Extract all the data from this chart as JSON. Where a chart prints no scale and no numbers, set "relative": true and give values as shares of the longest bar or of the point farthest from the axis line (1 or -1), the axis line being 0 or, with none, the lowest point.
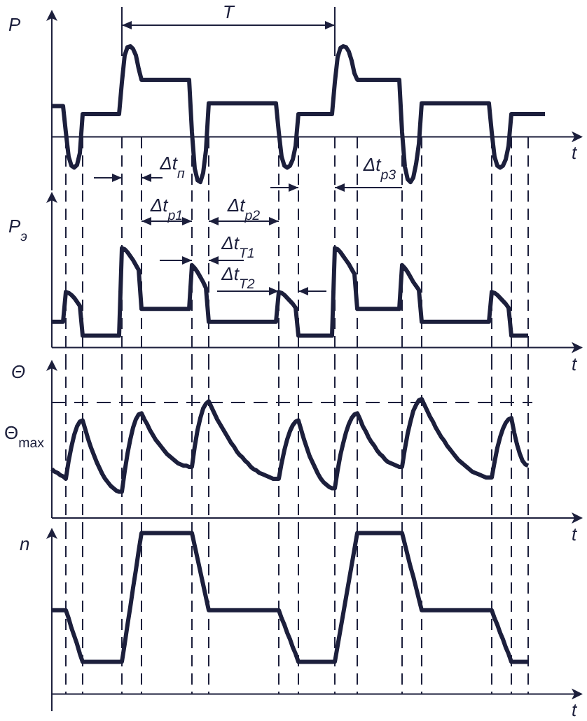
{
  "chart_data": [
    {
      "type": "line",
      "ylabel": "P",
      "xlabel": "t",
      "relative": true,
      "color": "#1c1f3c",
      "categories": [
        null,
        null,
        null,
        null,
        null,
        null,
        null,
        null,
        null,
        null,
        null,
        null,
        null,
        null,
        null,
        null,
        null,
        null,
        null,
        null,
        null,
        null,
        null,
        null,
        null,
        null,
        null,
        null,
        null,
        null,
        null,
        null,
        null,
        null,
        null,
        null,
        null,
        null,
        null,
        null,
        null,
        null,
        null,
        null,
        null,
        null,
        null,
        null,
        null,
        null,
        null,
        null,
        null,
        null,
        null,
        null,
        null,
        null,
        null,
        null,
        null,
        null,
        null,
        null,
        null,
        null,
        null,
        null,
        null,
        null,
        null,
        null,
        null,
        null,
        null,
        null,
        null,
        null,
        null,
        null,
        null,
        null,
        null,
        null,
        null,
        null,
        null,
        null,
        null,
        null,
        null,
        null,
        null,
        null,
        null,
        null,
        null,
        null,
        null,
        null,
        null,
        null,
        null,
        null,
        null,
        null,
        null,
        null,
        null,
        null,
        null,
        null,
        null,
        null,
        null,
        null,
        null,
        null,
        null,
        null,
        null,
        null,
        null,
        null,
        null,
        null,
        null,
        null,
        null,
        null,
        null,
        null,
        null,
        null,
        null,
        null,
        null,
        null,
        null,
        null,
        null,
        null,
        null,
        null,
        null,
        null,
        null,
        null,
        null,
        null,
        null,
        null,
        null,
        null,
        null,
        null,
        null,
        null,
        null,
        null,
        null,
        null,
        null,
        null,
        null,
        null,
        null,
        null,
        null,
        null,
        null,
        null,
        null,
        null,
        null,
        null,
        null
      ],
      "values": [
        0.34,
        0.34,
        0.34,
        0.34,
        0.34,
        0.05,
        -0.22,
        -0.32,
        -0.34,
        -0.31,
        -0.18,
        0.25,
        0.25,
        0.25,
        0.25,
        0.25,
        0.25,
        0.25,
        0.25,
        0.25,
        0.25,
        0.25,
        0.25,
        0.25,
        0.25,
        0.6,
        0.9,
        0.99,
        1,
        0.97,
        0.9,
        0.75,
        0.63,
        0.63,
        0.63,
        0.63,
        0.63,
        0.63,
        0.63,
        0.63,
        0.63,
        0.63,
        0.63,
        0.63,
        0.63,
        0.63,
        0.63,
        0.63,
        0.63,
        0.63,
        0.05,
        -0.35,
        -0.48,
        -0.5,
        -0.4,
        -0.15,
        0.37,
        0.37,
        0.37,
        0.37,
        0.37,
        0.37,
        0.37,
        0.37,
        0.37,
        0.37,
        0.37,
        0.37,
        0.37,
        0.37,
        0.37,
        0.37,
        0.37,
        0.37,
        0.37,
        0.37,
        0.37,
        0.37,
        0.37,
        0.37,
        0.37,
        0.05,
        -0.22,
        -0.32,
        -0.34,
        -0.32,
        -0.25,
        -0.1,
        0.25,
        0.25,
        0.25,
        0.25,
        0.25,
        0.25,
        0.25,
        0.25,
        0.25,
        0.25,
        0.25,
        0.25,
        0.25,
        0.6,
        0.88,
        0.98,
        1,
        0.99,
        0.94,
        0.84,
        0.7,
        0.63,
        0.63,
        0.63,
        0.63,
        0.63,
        0.63,
        0.63,
        0.63,
        0.63,
        0.63,
        0.63,
        0.63,
        0.63,
        0.63,
        0.63,
        0.63,
        0.05,
        -0.33,
        -0.47,
        -0.5,
        -0.45,
        -0.3,
        -0.08,
        0.37,
        0.37,
        0.37,
        0.37,
        0.37,
        0.37,
        0.37,
        0.37,
        0.37,
        0.37,
        0.37,
        0.37,
        0.37,
        0.37,
        0.37,
        0.37,
        0.37,
        0.37,
        0.37,
        0.37,
        0.37,
        0.37,
        0.37,
        0.37,
        0.37,
        0.05,
        -0.22,
        -0.32,
        -0.34,
        -0.32,
        -0.25,
        -0.1,
        0.25,
        0.25,
        0.25,
        0.25,
        0.25,
        0.25,
        0.25,
        0.25,
        0.25,
        0.25,
        0.25,
        0.25,
        0.25
      ],
      "annotations": [
        "T",
        "Δt$_{п}$",
        "Δt$_{р3}$"
      ]
    },
    {
      "type": "line",
      "ylabel": "P$_{э}$",
      "xlabel": "t",
      "relative": true,
      "color": "#1c1f3c",
      "categories": [
        null,
        null,
        null,
        null,
        null,
        null,
        null,
        null,
        null,
        null,
        null,
        null,
        null,
        null,
        null,
        null,
        null,
        null,
        null,
        null,
        null,
        null,
        null,
        null,
        null,
        null,
        null,
        null,
        null,
        null,
        null,
        null,
        null,
        null,
        null,
        null,
        null,
        null,
        null,
        null,
        null,
        null,
        null,
        null,
        null,
        null,
        null,
        null,
        null,
        null,
        null,
        null,
        null,
        null,
        null,
        null,
        null,
        null,
        null,
        null,
        null,
        null,
        null,
        null,
        null,
        null,
        null,
        null,
        null,
        null,
        null,
        null,
        null,
        null,
        null,
        null,
        null,
        null,
        null,
        null,
        null,
        null,
        null,
        null,
        null,
        null,
        null,
        null,
        null,
        null,
        null,
        null,
        null,
        null,
        null,
        null,
        null,
        null,
        null,
        null,
        null,
        null,
        null,
        null,
        null,
        null,
        null,
        null,
        null,
        null,
        null,
        null,
        null,
        null,
        null,
        null,
        null,
        null,
        null,
        null,
        null,
        null,
        null,
        null,
        null,
        null,
        null,
        null,
        null,
        null,
        null,
        null,
        null,
        null,
        null,
        null,
        null,
        null,
        null,
        null,
        null,
        null,
        null,
        null,
        null,
        null,
        null,
        null,
        null,
        null,
        null,
        null,
        null,
        null,
        null,
        null,
        null,
        null,
        null,
        null,
        null,
        null,
        null,
        null,
        null,
        null,
        null,
        null,
        null,
        null,
        null
      ],
      "values": [
        0.26,
        0.26,
        0.26,
        0.26,
        0.26,
        0.56,
        0.55,
        0.53,
        0.5,
        0.46,
        0.42,
        0.12,
        0.12,
        0.12,
        0.12,
        0.12,
        0.12,
        0.12,
        0.12,
        0.12,
        0.12,
        0.12,
        0.12,
        0.12,
        0.12,
        1,
        0.99,
        0.96,
        0.92,
        0.88,
        0.83,
        0.78,
        0.39,
        0.39,
        0.39,
        0.39,
        0.39,
        0.39,
        0.39,
        0.39,
        0.39,
        0.39,
        0.39,
        0.39,
        0.39,
        0.39,
        0.39,
        0.39,
        0.39,
        0.39,
        0.83,
        0.8,
        0.76,
        0.71,
        0.66,
        0.6,
        0.26,
        0.26,
        0.26,
        0.26,
        0.26,
        0.26,
        0.26,
        0.26,
        0.26,
        0.26,
        0.26,
        0.26,
        0.26,
        0.26,
        0.26,
        0.26,
        0.26,
        0.26,
        0.26,
        0.26,
        0.26,
        0.26,
        0.26,
        0.26,
        0.26,
        0.56,
        0.55,
        0.53,
        0.5,
        0.47,
        0.44,
        0.4,
        0.12,
        0.12,
        0.12,
        0.12,
        0.12,
        0.12,
        0.12,
        0.12,
        0.12,
        0.12,
        0.12,
        0.12,
        0.12,
        1,
        0.99,
        0.96,
        0.92,
        0.88,
        0.84,
        0.79,
        0.74,
        0.39,
        0.39,
        0.39,
        0.39,
        0.39,
        0.39,
        0.39,
        0.39,
        0.39,
        0.39,
        0.39,
        0.39,
        0.39,
        0.39,
        0.39,
        0.39,
        0.83,
        0.8,
        0.76,
        0.71,
        0.66,
        0.62,
        0.58,
        0.26,
        0.26,
        0.26,
        0.26,
        0.26,
        0.26,
        0.26,
        0.26,
        0.26,
        0.26,
        0.26,
        0.26,
        0.26,
        0.26,
        0.26,
        0.26,
        0.26,
        0.26,
        0.26,
        0.26,
        0.26,
        0.26,
        0.26,
        0.26,
        0.26,
        0.56,
        0.55,
        0.53,
        0.5,
        0.47,
        0.44,
        0.4,
        0.12,
        0.12,
        0.12,
        0.12,
        0.12,
        0.12,
        0.12
      ],
      "annotations": [
        "Δt$_{р1}$",
        "Δt$_{р2}$",
        "Δt$_{T1}$",
        "Δt$_{T2}$"
      ]
    },
    {
      "type": "line",
      "ylabel": "Θ",
      "xlabel": "t",
      "relative": true,
      "color": "#1c1f3c",
      "categories": [
        null,
        null,
        null,
        null,
        null,
        null,
        null,
        null,
        null,
        null,
        null,
        null,
        null,
        null,
        null,
        null,
        null,
        null,
        null,
        null,
        null,
        null,
        null,
        null,
        null,
        null,
        null,
        null,
        null,
        null,
        null,
        null,
        null,
        null,
        null,
        null,
        null,
        null,
        null,
        null,
        null,
        null,
        null,
        null,
        null,
        null,
        null,
        null,
        null,
        null,
        null,
        null,
        null,
        null,
        null,
        null,
        null,
        null,
        null,
        null,
        null,
        null,
        null,
        null,
        null,
        null,
        null,
        null,
        null,
        null,
        null,
        null,
        null,
        null,
        null,
        null,
        null,
        null,
        null,
        null,
        null,
        null,
        null,
        null,
        null,
        null,
        null,
        null,
        null,
        null,
        null,
        null,
        null,
        null,
        null,
        null,
        null,
        null,
        null,
        null,
        null,
        null,
        null,
        null,
        null,
        null,
        null,
        null,
        null,
        null,
        null,
        null,
        null,
        null,
        null,
        null,
        null,
        null,
        null,
        null,
        null,
        null,
        null,
        null,
        null,
        null,
        null,
        null,
        null,
        null,
        null,
        null,
        null,
        null,
        null,
        null,
        null,
        null,
        null,
        null,
        null,
        null,
        null,
        null,
        null,
        null,
        null,
        null,
        null,
        null,
        null,
        null,
        null,
        null,
        null,
        null,
        null,
        null,
        null,
        null,
        null,
        null,
        null,
        null,
        null,
        null,
        null,
        null,
        null,
        null,
        null
      ],
      "values": [
        0.41,
        0.39,
        0.38,
        0.36,
        0.35,
        0.33,
        0.48,
        0.6,
        0.7,
        0.77,
        0.81,
        0.82,
        0.74,
        0.66,
        0.59,
        0.53,
        0.47,
        0.42,
        0.37,
        0.33,
        0.3,
        0.27,
        0.25,
        0.23,
        0.22,
        0.22,
        0.39,
        0.54,
        0.66,
        0.76,
        0.83,
        0.87,
        0.88,
        0.83,
        0.79,
        0.74,
        0.7,
        0.66,
        0.63,
        0.6,
        0.57,
        0.54,
        0.52,
        0.5,
        0.48,
        0.46,
        0.45,
        0.44,
        0.44,
        0.43,
        0.43,
        0.6,
        0.74,
        0.84,
        0.92,
        0.96,
        0.98,
        0.93,
        0.88,
        0.83,
        0.79,
        0.75,
        0.71,
        0.67,
        0.63,
        0.6,
        0.56,
        0.53,
        0.51,
        0.48,
        0.46,
        0.43,
        0.41,
        0.4,
        0.38,
        0.37,
        0.36,
        0.35,
        0.34,
        0.33,
        0.33,
        0.33,
        0.46,
        0.57,
        0.66,
        0.73,
        0.78,
        0.81,
        0.82,
        0.74,
        0.66,
        0.59,
        0.52,
        0.47,
        0.42,
        0.37,
        0.33,
        0.3,
        0.28,
        0.26,
        0.25,
        0.25,
        0.4,
        0.53,
        0.63,
        0.72,
        0.79,
        0.84,
        0.87,
        0.88,
        0.83,
        0.77,
        0.73,
        0.68,
        0.64,
        0.61,
        0.57,
        0.54,
        0.52,
        0.49,
        0.47,
        0.46,
        0.45,
        0.44,
        0.43,
        0.43,
        0.58,
        0.71,
        0.81,
        0.9,
        0.95,
        0.99,
        1,
        0.95,
        0.9,
        0.85,
        0.81,
        0.76,
        0.72,
        0.68,
        0.65,
        0.61,
        0.58,
        0.55,
        0.52,
        0.49,
        0.47,
        0.45,
        0.43,
        0.41,
        0.39,
        0.38,
        0.37,
        0.36,
        0.35,
        0.34,
        0.34,
        0.34,
        0.47,
        0.59,
        0.68,
        0.75,
        0.8,
        0.83,
        0.84,
        0.72,
        0.62,
        0.54,
        0.48,
        0.45,
        0.44
      ],
      "ref_lines": [
        {
          "axis": "y",
          "value": 0.97,
          "label": "Θ$_{max}$"
        }
      ]
    },
    {
      "type": "line",
      "ylabel": "n",
      "xlabel": "t",
      "relative": true,
      "color": "#1c1f3c",
      "categories": [
        null,
        null,
        null,
        null,
        null,
        null,
        null,
        null,
        null,
        null,
        null,
        null,
        null,
        null,
        null,
        null,
        null,
        null,
        null,
        null,
        null,
        null,
        null,
        null,
        null,
        null,
        null,
        null,
        null,
        null,
        null,
        null,
        null,
        null,
        null,
        null,
        null,
        null,
        null,
        null,
        null,
        null,
        null,
        null,
        null,
        null,
        null,
        null,
        null,
        null,
        null,
        null,
        null,
        null,
        null,
        null,
        null,
        null,
        null,
        null,
        null,
        null,
        null,
        null,
        null,
        null,
        null,
        null,
        null,
        null,
        null,
        null,
        null,
        null,
        null,
        null,
        null,
        null,
        null,
        null,
        null,
        null,
        null,
        null,
        null,
        null,
        null,
        null,
        null,
        null,
        null,
        null,
        null,
        null,
        null,
        null,
        null,
        null,
        null,
        null,
        null,
        null,
        null,
        null,
        null,
        null,
        null,
        null,
        null,
        null,
        null,
        null,
        null,
        null,
        null,
        null,
        null,
        null,
        null,
        null,
        null,
        null,
        null,
        null,
        null,
        null,
        null,
        null,
        null,
        null,
        null,
        null,
        null,
        null,
        null,
        null,
        null,
        null,
        null,
        null,
        null,
        null,
        null,
        null,
        null,
        null,
        null,
        null,
        null,
        null,
        null,
        null,
        null,
        null,
        null,
        null,
        null,
        null,
        null,
        null,
        null,
        null,
        null,
        null,
        null,
        null,
        null,
        null,
        null,
        null,
        null
      ],
      "values": [
        0.52,
        0.52,
        0.52,
        0.52,
        0.52,
        0.52,
        0.47,
        0.41,
        0.36,
        0.31,
        0.25,
        0.2,
        0.2,
        0.2,
        0.2,
        0.2,
        0.2,
        0.2,
        0.2,
        0.2,
        0.2,
        0.2,
        0.2,
        0.2,
        0.2,
        0.2,
        0.31,
        0.43,
        0.54,
        0.66,
        0.77,
        0.89,
        1,
        1,
        1,
        1,
        1,
        1,
        1,
        1,
        1,
        1,
        1,
        1,
        1,
        1,
        1,
        1,
        1,
        1,
        1,
        0.92,
        0.84,
        0.76,
        0.68,
        0.6,
        0.52,
        0.52,
        0.52,
        0.52,
        0.52,
        0.52,
        0.52,
        0.52,
        0.52,
        0.52,
        0.52,
        0.52,
        0.52,
        0.52,
        0.52,
        0.52,
        0.52,
        0.52,
        0.52,
        0.52,
        0.52,
        0.52,
        0.52,
        0.52,
        0.52,
        0.52,
        0.47,
        0.43,
        0.38,
        0.34,
        0.29,
        0.25,
        0.2,
        0.2,
        0.2,
        0.2,
        0.2,
        0.2,
        0.2,
        0.2,
        0.2,
        0.2,
        0.2,
        0.2,
        0.2,
        0.2,
        0.3,
        0.4,
        0.5,
        0.6,
        0.7,
        0.8,
        0.9,
        1,
        1,
        1,
        1,
        1,
        1,
        1,
        1,
        1,
        1,
        1,
        1,
        1,
        1,
        1,
        1,
        1,
        0.93,
        0.86,
        0.79,
        0.73,
        0.66,
        0.59,
        0.52,
        0.52,
        0.52,
        0.52,
        0.52,
        0.52,
        0.52,
        0.52,
        0.52,
        0.52,
        0.52,
        0.52,
        0.52,
        0.52,
        0.52,
        0.52,
        0.52,
        0.52,
        0.52,
        0.52,
        0.52,
        0.52,
        0.52,
        0.52,
        0.52,
        0.52,
        0.47,
        0.43,
        0.38,
        0.34,
        0.29,
        0.25,
        0.2,
        0.2,
        0.2,
        0.2,
        0.2,
        0.2,
        0.2
      ]
    }
  ]
}
